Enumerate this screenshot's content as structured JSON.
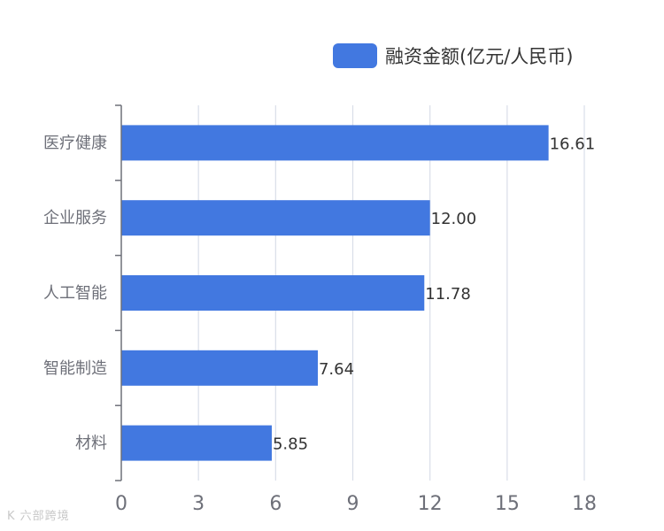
{
  "legend": {
    "label": "融资金额(亿元/人民币)"
  },
  "watermark": {
    "text": "K 六部跨境"
  },
  "colors": {
    "bar": "#4278e0",
    "grid": "#d9dee8",
    "axis": "#6e7079"
  },
  "chart_data": {
    "type": "bar",
    "orientation": "horizontal",
    "categories": [
      "医疗健康",
      "企业服务",
      "人工智能",
      "智能制造",
      "材料"
    ],
    "series": [
      {
        "name": "融资金额(亿元/人民币)",
        "values": [
          16.61,
          12.0,
          11.78,
          7.64,
          5.85
        ]
      }
    ],
    "value_labels": [
      "16.61",
      "12.00",
      "11.78",
      "7.64",
      "5.85"
    ],
    "xlim": [
      0,
      18
    ],
    "xticks": [
      0,
      3,
      6,
      9,
      12,
      15,
      18
    ],
    "grid": true,
    "legend_position": "top-right"
  }
}
